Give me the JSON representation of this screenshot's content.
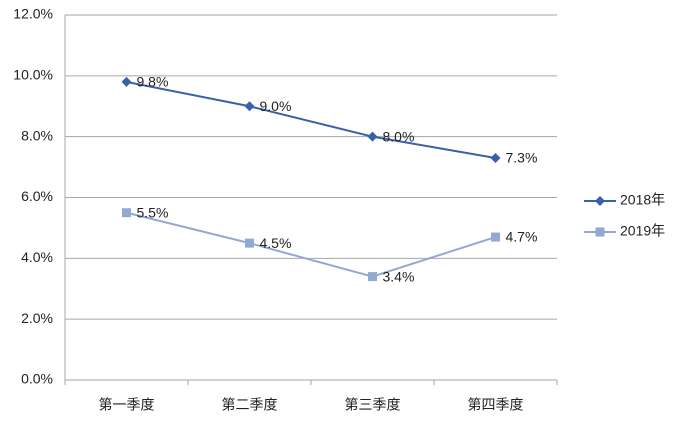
{
  "chart_data": {
    "type": "line",
    "categories": [
      "第一季度",
      "第二季度",
      "第三季度",
      "第四季度"
    ],
    "series": [
      {
        "name": "2018年",
        "color": "#3a5fab",
        "marker": "diamond",
        "values": [
          9.8,
          9.0,
          8.0,
          7.3
        ],
        "value_labels": [
          "9.8%",
          "9.0%",
          "8.0%",
          "7.3%"
        ]
      },
      {
        "name": "2019年",
        "color": "#93a9d3",
        "marker": "square",
        "values": [
          5.5,
          4.5,
          3.4,
          4.7
        ],
        "value_labels": [
          "5.5%",
          "4.5%",
          "3.4%",
          "4.7%"
        ]
      }
    ],
    "ylim": [
      0,
      12
    ],
    "yticks": [
      {
        "value": 0,
        "label": "0.0%"
      },
      {
        "value": 2,
        "label": "2.0%"
      },
      {
        "value": 4,
        "label": "4.0%"
      },
      {
        "value": 6,
        "label": "6.0%"
      },
      {
        "value": 8,
        "label": "8.0%"
      },
      {
        "value": 10,
        "label": "10.0%"
      },
      {
        "value": 12,
        "label": "12.0%"
      }
    ],
    "grid": true,
    "legend": "right"
  }
}
